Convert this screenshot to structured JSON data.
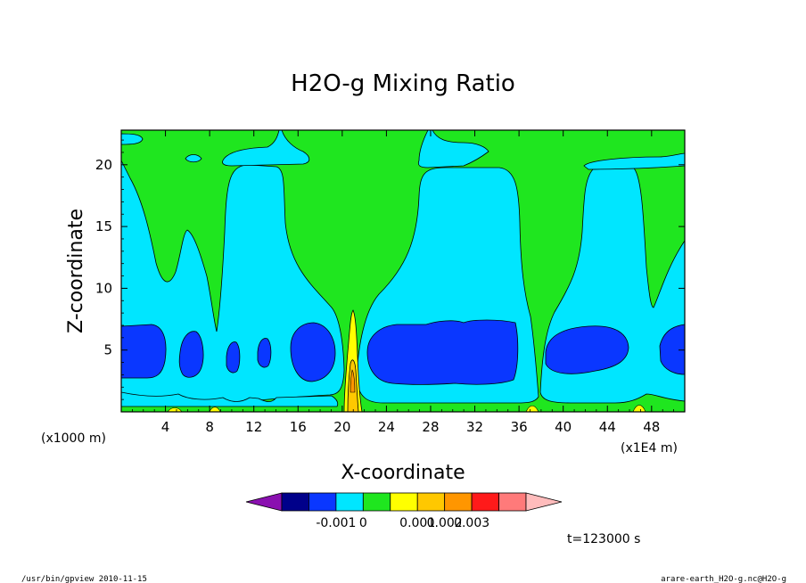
{
  "chart_data": {
    "type": "heatmap",
    "title": "H2O-g Mixing Ratio",
    "xlabel": "X-coordinate",
    "ylabel": "Z-coordinate",
    "x_unit_label": "(x1E4 m)",
    "y_unit_label": "(x1000 m)",
    "x_ticks": [
      4,
      8,
      12,
      16,
      20,
      24,
      28,
      32,
      36,
      40,
      44,
      48
    ],
    "y_ticks": [
      5,
      10,
      15,
      20
    ],
    "xlim": [
      0,
      51
    ],
    "ylim": [
      0,
      22.8
    ],
    "legend": {
      "placement": "bottom",
      "colors": [
        "#8a10b0",
        "#00008a",
        "#0a37ff",
        "#00e6ff",
        "#1fe61f",
        "#ffff00",
        "#ffc800",
        "#ff9600",
        "#ff1a1a",
        "#ff7a7a",
        "#ffbcbc"
      ],
      "labels": [
        {
          "after_bin": 2,
          "text": "-0.001"
        },
        {
          "after_bin": 3,
          "text": "0"
        },
        {
          "after_bin": 5,
          "text": "0.001"
        },
        {
          "after_bin": 6,
          "text": "0.002"
        },
        {
          "after_bin": 7,
          "text": "0.003"
        }
      ]
    },
    "annotation": "t=123000 s"
  },
  "footer": {
    "left": "/usr/bin/gpview   2010-11-15",
    "right": "arare-earth_H2O-g.nc@H2O-g"
  }
}
